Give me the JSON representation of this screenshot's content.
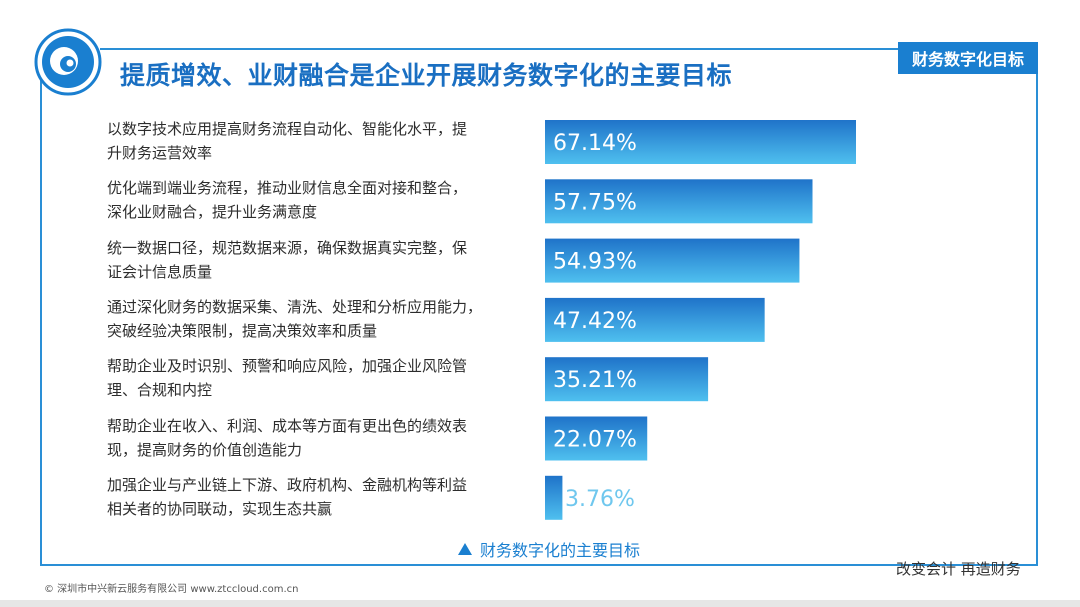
{
  "title": "提质增效、业财融合是企业开展财务数字化的主要目标",
  "tag": "财务数字化目标",
  "caption": "财务数字化的主要目标",
  "slogan": "改变会计   再造财务",
  "copyright": "© 深圳市中兴新云服务有限公司  www.ztccloud.com.cn",
  "colors": {
    "accent": "#1a7fd0",
    "bar_top": "#1f73c9",
    "bar_bottom": "#4fc0ef",
    "bar_light": "#6fc7ee"
  },
  "chart_data": {
    "type": "bar",
    "orientation": "horizontal",
    "categories": [
      "以数字技术应用提高财务流程自动化、智能化水平，提升财务运营效率",
      "优化端到端业务流程，推动业财信息全面对接和整合，深化业财融合，提升业务满意度",
      "统一数据口径，规范数据来源，确保数据真实完整，保证会计信息质量",
      "通过深化财务的数据采集、清洗、处理和分析应用能力，突破经验决策限制，提高决策效率和质量",
      "帮助企业及时识别、预警和响应风险，加强企业风险管理、合规和内控",
      "帮助企业在收入、利润、成本等方面有更出色的绩效表现，提高财务的价值创造能力",
      "加强企业与产业链上下游、政府机构、金融机构等利益相关者的协同联动，实现生态共赢"
    ],
    "label_lines": [
      [
        "以数字技术应用提高财务流程自动化、智能化水平，提",
        "升财务运营效率"
      ],
      [
        "优化端到端业务流程，推动业财信息全面对接和整合，",
        "深化业财融合，提升业务满意度"
      ],
      [
        "统一数据口径，规范数据来源，确保数据真实完整，保",
        "证会计信息质量"
      ],
      [
        "通过深化财务的数据采集、清洗、处理和分析应用能力，",
        "突破经验决策限制，提高决策效率和质量"
      ],
      [
        "帮助企业及时识别、预警和响应风险，加强企业风险管",
        "理、合规和内控"
      ],
      [
        "帮助企业在收入、利润、成本等方面有更出色的绩效表",
        "现，提高财务的价值创造能力"
      ],
      [
        "加强企业与产业链上下游、政府机构、金融机构等利益",
        "相关者的协同联动，实现生态共赢"
      ]
    ],
    "values": [
      67.14,
      57.75,
      54.93,
      47.42,
      35.21,
      22.07,
      3.76
    ],
    "value_labels": [
      "67.14%",
      "57.75%",
      "54.93%",
      "47.42%",
      "35.21%",
      "22.07%",
      "3.76%"
    ],
    "xlim": [
      0,
      67.14
    ]
  }
}
